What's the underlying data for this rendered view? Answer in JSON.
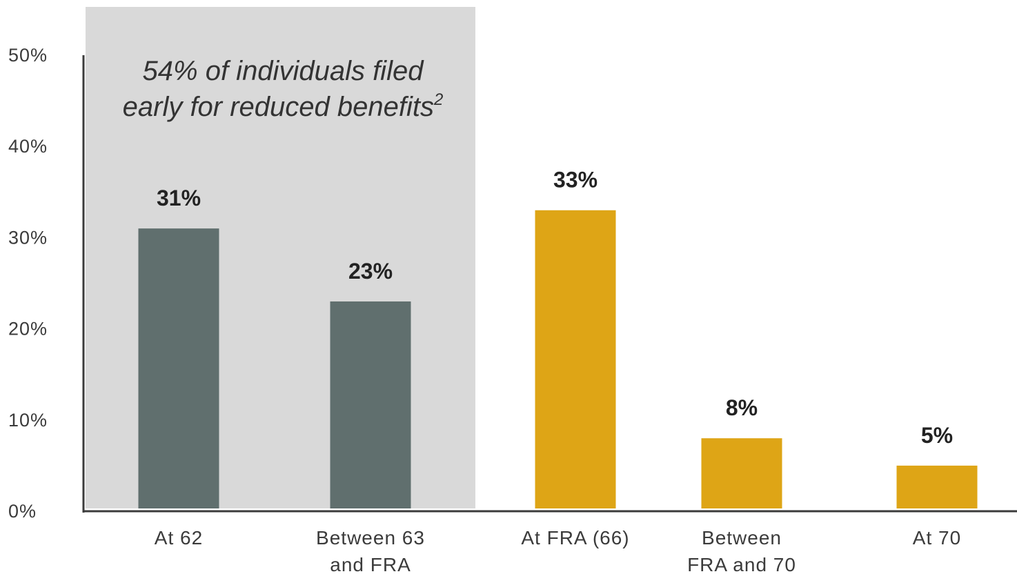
{
  "chart_data": {
    "type": "bar",
    "categories": [
      [
        "At 62"
      ],
      [
        "Between 63",
        "and FRA"
      ],
      [
        "At FRA (66)"
      ],
      [
        "Between",
        "FRA and 70"
      ],
      [
        "At 70"
      ]
    ],
    "values": [
      31,
      23,
      33,
      8,
      5
    ],
    "data_labels": [
      "31%",
      "23%",
      "33%",
      "8%",
      "5%"
    ],
    "bar_colors": [
      "#606f6e",
      "#606f6e",
      "#dea516",
      "#dea516",
      "#dea516"
    ],
    "ylim": [
      0,
      50
    ],
    "yticks": [
      0,
      10,
      20,
      30,
      40,
      50
    ],
    "ytick_labels": [
      "0%",
      "10%",
      "20%",
      "30%",
      "40%",
      "50%"
    ],
    "grid": false,
    "highlight": {
      "covers_categories": [
        0,
        1
      ],
      "color": "#d9d9d9",
      "text_lines": [
        "54% of individuals filed",
        "early for reduced benefits"
      ],
      "superscript": "2"
    },
    "axis_color": "#3b3b3b"
  }
}
